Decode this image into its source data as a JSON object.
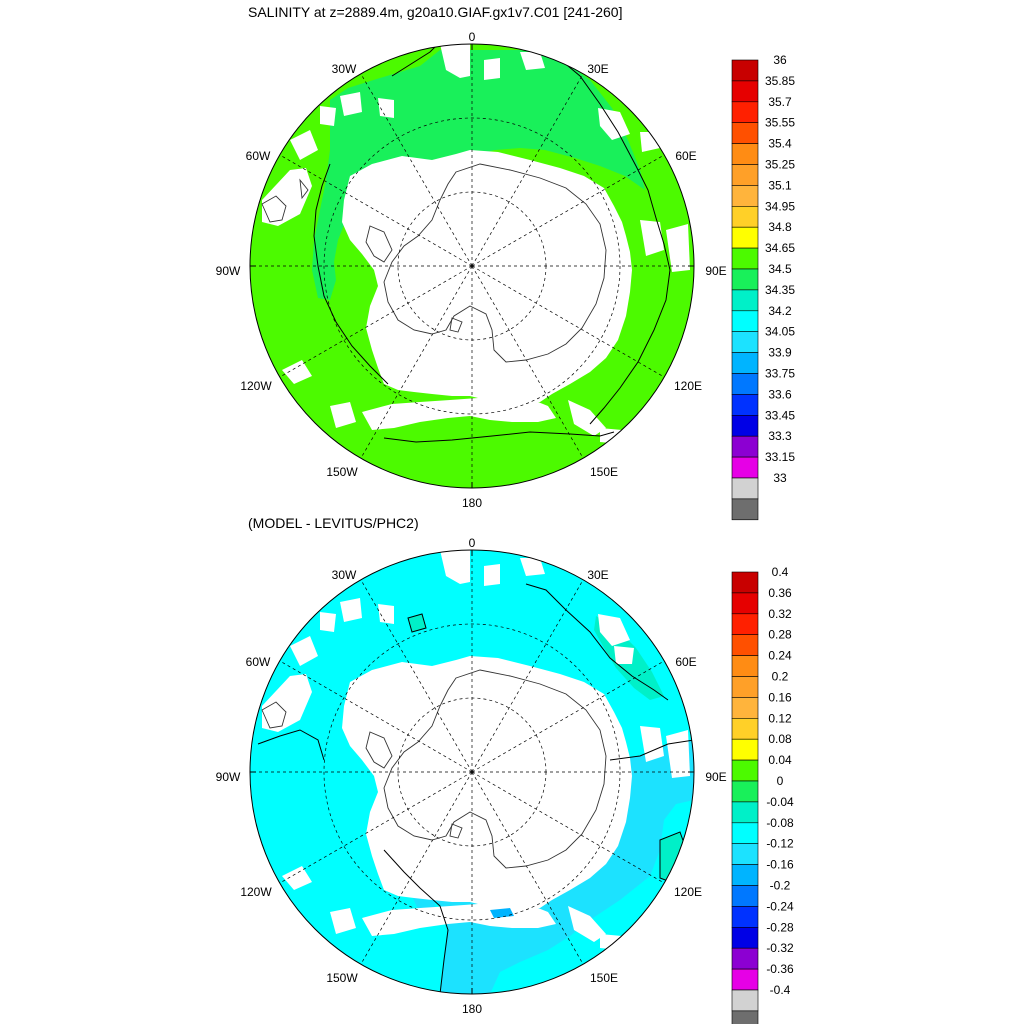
{
  "panels": [
    {
      "title": "SALINITY at z=2889.4m, g20a10.GIAF.gx1v7.C01 [241-260]",
      "ocean_color": "#4cfa00",
      "ocean_secondary_color": "#19f05a",
      "longitude_labels": [
        "0",
        "30E",
        "60E",
        "90E",
        "120E",
        "150E",
        "180",
        "150W",
        "120W",
        "90W",
        "60W",
        "30W"
      ],
      "colorbar": {
        "labels": [
          "36",
          "35.85",
          "35.7",
          "35.55",
          "35.4",
          "35.25",
          "35.1",
          "34.95",
          "34.8",
          "34.65",
          "34.5",
          "34.35",
          "34.2",
          "34.05",
          "33.9",
          "33.75",
          "33.6",
          "33.45",
          "33.3",
          "33.15",
          "33"
        ]
      }
    },
    {
      "title": "(MODEL - LEVITUS/PHC2)",
      "ocean_color": "#00ffff",
      "ocean_secondary_color": "#1ce2ff",
      "longitude_labels": [
        "0",
        "30E",
        "60E",
        "90E",
        "120E",
        "150E",
        "180",
        "150W",
        "120W",
        "90W",
        "60W",
        "30W"
      ],
      "colorbar": {
        "labels": [
          "0.4",
          "0.36",
          "0.32",
          "0.28",
          "0.24",
          "0.2",
          "0.16",
          "0.12",
          "0.08",
          "0.04",
          "0",
          "-0.04",
          "-0.08",
          "-0.12",
          "-0.16",
          "-0.2",
          "-0.24",
          "-0.28",
          "-0.32",
          "-0.36",
          "-0.4"
        ]
      }
    }
  ],
  "colorbar_colors": [
    "#c80000",
    "#e60000",
    "#ff2000",
    "#ff5000",
    "#ff8c14",
    "#ffa028",
    "#ffb43c",
    "#ffd028",
    "#ffff00",
    "#4cfa00",
    "#19f05a",
    "#00f0c8",
    "#00ffff",
    "#1ce2ff",
    "#00b4ff",
    "#0078ff",
    "#0032ff",
    "#0000e6",
    "#8c00d2",
    "#e600e6",
    "#d2d2d2",
    "#6e6e6e"
  ]
}
